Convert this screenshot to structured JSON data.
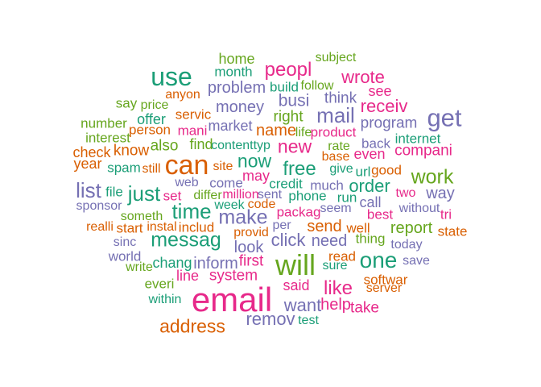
{
  "palette": {
    "teal": "#1b9e77",
    "orange": "#d95f02",
    "purple": "#7570b3",
    "pink": "#e7298a",
    "green": "#66a61e"
  },
  "words": [
    {
      "text": "email",
      "freq": 100,
      "color": "pink"
    },
    {
      "text": "will",
      "freq": 80,
      "color": "green"
    },
    {
      "text": "can",
      "freq": 72,
      "color": "orange"
    },
    {
      "text": "use",
      "freq": 68,
      "color": "teal"
    },
    {
      "text": "get",
      "freq": 62,
      "color": "purple"
    },
    {
      "text": "one",
      "freq": 54,
      "color": "teal"
    },
    {
      "text": "mail",
      "freq": 48,
      "color": "purple"
    },
    {
      "text": "time",
      "freq": 46,
      "color": "teal"
    },
    {
      "text": "just",
      "freq": 46,
      "color": "teal"
    },
    {
      "text": "list",
      "freq": 46,
      "color": "purple"
    },
    {
      "text": "messag",
      "freq": 44,
      "color": "teal"
    },
    {
      "text": "make",
      "freq": 44,
      "color": "purple"
    },
    {
      "text": "work",
      "freq": 44,
      "color": "green"
    },
    {
      "text": "peopl",
      "freq": 40,
      "color": "pink"
    },
    {
      "text": "free",
      "freq": 40,
      "color": "teal"
    },
    {
      "text": "like",
      "freq": 40,
      "color": "pink"
    },
    {
      "text": "now",
      "freq": 38,
      "color": "teal"
    },
    {
      "text": "address",
      "freq": 36,
      "color": "orange"
    },
    {
      "text": "new",
      "freq": 36,
      "color": "pink"
    },
    {
      "text": "order",
      "freq": 34,
      "color": "teal"
    },
    {
      "text": "wrote",
      "freq": 32,
      "color": "pink"
    },
    {
      "text": "receiv",
      "freq": 32,
      "color": "pink"
    },
    {
      "text": "click",
      "freq": 32,
      "color": "purple"
    },
    {
      "text": "remov",
      "freq": 32,
      "color": "purple"
    },
    {
      "text": "want",
      "freq": 32,
      "color": "purple"
    },
    {
      "text": "busi",
      "freq": 30,
      "color": "purple"
    },
    {
      "text": "money",
      "freq": 28,
      "color": "purple"
    },
    {
      "text": "way",
      "freq": 28,
      "color": "purple"
    },
    {
      "text": "report",
      "freq": 28,
      "color": "green"
    },
    {
      "text": "send",
      "freq": 28,
      "color": "orange"
    },
    {
      "text": "need",
      "freq": 28,
      "color": "purple"
    },
    {
      "text": "look",
      "freq": 28,
      "color": "purple"
    },
    {
      "text": "problem",
      "freq": 26,
      "color": "purple"
    },
    {
      "text": "name",
      "freq": 26,
      "color": "orange"
    },
    {
      "text": "inform",
      "freq": 26,
      "color": "purple"
    },
    {
      "text": "help",
      "freq": 26,
      "color": "pink"
    },
    {
      "text": "think",
      "freq": 24,
      "color": "purple"
    },
    {
      "text": "program",
      "freq": 24,
      "color": "purple"
    },
    {
      "text": "compani",
      "freq": 24,
      "color": "pink"
    },
    {
      "text": "system",
      "freq": 24,
      "color": "pink"
    },
    {
      "text": "take",
      "freq": 24,
      "color": "pink"
    },
    {
      "text": "right",
      "freq": 24,
      "color": "green"
    },
    {
      "text": "first",
      "freq": 24,
      "color": "pink"
    },
    {
      "text": "know",
      "freq": 22,
      "color": "orange"
    },
    {
      "text": "also",
      "freq": 22,
      "color": "green"
    },
    {
      "text": "home",
      "freq": 20,
      "color": "green"
    },
    {
      "text": "see",
      "freq": 20,
      "color": "pink"
    },
    {
      "text": "check",
      "freq": 20,
      "color": "orange"
    },
    {
      "text": "year",
      "freq": 20,
      "color": "orange"
    },
    {
      "text": "even",
      "freq": 20,
      "color": "pink"
    },
    {
      "text": "call",
      "freq": 20,
      "color": "purple"
    },
    {
      "text": "market",
      "freq": 20,
      "color": "purple"
    },
    {
      "text": "find",
      "freq": 20,
      "color": "green"
    },
    {
      "text": "offer",
      "freq": 20,
      "color": "teal"
    },
    {
      "text": "may",
      "freq": 20,
      "color": "pink"
    },
    {
      "text": "line",
      "freq": 20,
      "color": "pink"
    },
    {
      "text": "chang",
      "freq": 20,
      "color": "teal"
    },
    {
      "text": "said",
      "freq": 20,
      "color": "pink"
    },
    {
      "text": "state",
      "freq": 18,
      "color": "orange"
    },
    {
      "text": "thing",
      "freq": 18,
      "color": "green"
    },
    {
      "text": "good",
      "freq": 18,
      "color": "orange"
    },
    {
      "text": "product",
      "freq": 18,
      "color": "pink"
    },
    {
      "text": "internet",
      "freq": 18,
      "color": "teal"
    },
    {
      "text": "back",
      "freq": 18,
      "color": "purple"
    },
    {
      "text": "file",
      "freq": 18,
      "color": "teal"
    },
    {
      "text": "phone",
      "freq": 18,
      "color": "teal"
    },
    {
      "text": "credit",
      "freq": 18,
      "color": "teal"
    },
    {
      "text": "much",
      "freq": 18,
      "color": "purple"
    },
    {
      "text": "run",
      "freq": 18,
      "color": "teal"
    },
    {
      "text": "best",
      "freq": 18,
      "color": "pink"
    },
    {
      "text": "tri",
      "freq": 18,
      "color": "pink"
    },
    {
      "text": "softwar",
      "freq": 16,
      "color": "orange"
    },
    {
      "text": "month",
      "freq": 16,
      "color": "teal"
    },
    {
      "text": "build",
      "freq": 16,
      "color": "teal"
    },
    {
      "text": "subject",
      "freq": 14,
      "color": "green"
    },
    {
      "text": "follow",
      "freq": 14,
      "color": "green"
    },
    {
      "text": "anyon",
      "freq": 14,
      "color": "orange"
    },
    {
      "text": "say",
      "freq": 16,
      "color": "green"
    },
    {
      "text": "price",
      "freq": 14,
      "color": "green"
    },
    {
      "text": "servic",
      "freq": 16,
      "color": "orange"
    },
    {
      "text": "number",
      "freq": 16,
      "color": "green"
    },
    {
      "text": "mani",
      "freq": 16,
      "color": "pink"
    },
    {
      "text": "person",
      "freq": 16,
      "color": "orange"
    },
    {
      "text": "interest",
      "freq": 16,
      "color": "green"
    },
    {
      "text": "life",
      "freq": 14,
      "color": "green"
    },
    {
      "text": "contenttyp",
      "freq": 14,
      "color": "teal"
    },
    {
      "text": "rate",
      "freq": 14,
      "color": "green"
    },
    {
      "text": "base",
      "freq": 14,
      "color": "orange"
    },
    {
      "text": "spam",
      "freq": 16,
      "color": "teal"
    },
    {
      "text": "still",
      "freq": 14,
      "color": "orange"
    },
    {
      "text": "site",
      "freq": 14,
      "color": "orange"
    },
    {
      "text": "give",
      "freq": 14,
      "color": "teal"
    },
    {
      "text": "url",
      "freq": 16,
      "color": "teal"
    },
    {
      "text": "set",
      "freq": 16,
      "color": "pink"
    },
    {
      "text": "come",
      "freq": 16,
      "color": "purple"
    },
    {
      "text": "web",
      "freq": 14,
      "color": "purple"
    },
    {
      "text": "differ",
      "freq": 14,
      "color": "green"
    },
    {
      "text": "million",
      "freq": 14,
      "color": "pink"
    },
    {
      "text": "sent",
      "freq": 14,
      "color": "purple"
    },
    {
      "text": "two",
      "freq": 14,
      "color": "pink"
    },
    {
      "text": "sponsor",
      "freq": 14,
      "color": "purple"
    },
    {
      "text": "week",
      "freq": 14,
      "color": "teal"
    },
    {
      "text": "code",
      "freq": 14,
      "color": "orange"
    },
    {
      "text": "seem",
      "freq": 14,
      "color": "purple"
    },
    {
      "text": "without",
      "freq": 14,
      "color": "purple"
    },
    {
      "text": "someth",
      "freq": 14,
      "color": "green"
    },
    {
      "text": "packag",
      "freq": 16,
      "color": "pink"
    },
    {
      "text": "realli",
      "freq": 14,
      "color": "orange"
    },
    {
      "text": "start",
      "freq": 16,
      "color": "orange"
    },
    {
      "text": "instal",
      "freq": 14,
      "color": "orange"
    },
    {
      "text": "includ",
      "freq": 16,
      "color": "orange"
    },
    {
      "text": "provid",
      "freq": 14,
      "color": "orange"
    },
    {
      "text": "per",
      "freq": 14,
      "color": "purple"
    },
    {
      "text": "well",
      "freq": 16,
      "color": "orange"
    },
    {
      "text": "sinc",
      "freq": 14,
      "color": "purple"
    },
    {
      "text": "today",
      "freq": 14,
      "color": "purple"
    },
    {
      "text": "world",
      "freq": 16,
      "color": "purple"
    },
    {
      "text": "read",
      "freq": 16,
      "color": "orange"
    },
    {
      "text": "write",
      "freq": 14,
      "color": "green"
    },
    {
      "text": "sure",
      "freq": 14,
      "color": "teal"
    },
    {
      "text": "save",
      "freq": 14,
      "color": "purple"
    },
    {
      "text": "everi",
      "freq": 16,
      "color": "green"
    },
    {
      "text": "server",
      "freq": 14,
      "color": "orange"
    },
    {
      "text": "within",
      "freq": 14,
      "color": "teal"
    },
    {
      "text": "test",
      "freq": 14,
      "color": "teal"
    }
  ]
}
